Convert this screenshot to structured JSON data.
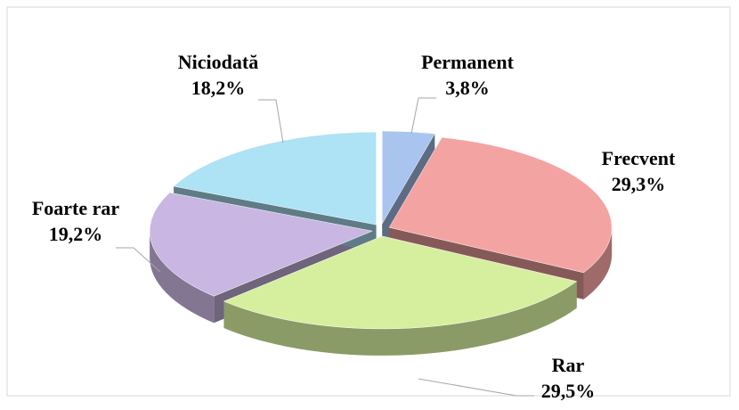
{
  "chart_data": {
    "type": "pie",
    "categories": [
      "Permanent",
      "Frecvent",
      "Rar",
      "Foarte rar",
      "Niciodată"
    ],
    "values": [
      3.8,
      29.3,
      29.5,
      19.2,
      18.2
    ],
    "value_labels": [
      "3,8%",
      "29,3%",
      "29,5%",
      "19,2%",
      "18,2%"
    ],
    "colors": [
      "#a9c4ef",
      "#f4a3a3",
      "#d6ef9f",
      "#c9b6e2",
      "#aee2f5"
    ]
  }
}
